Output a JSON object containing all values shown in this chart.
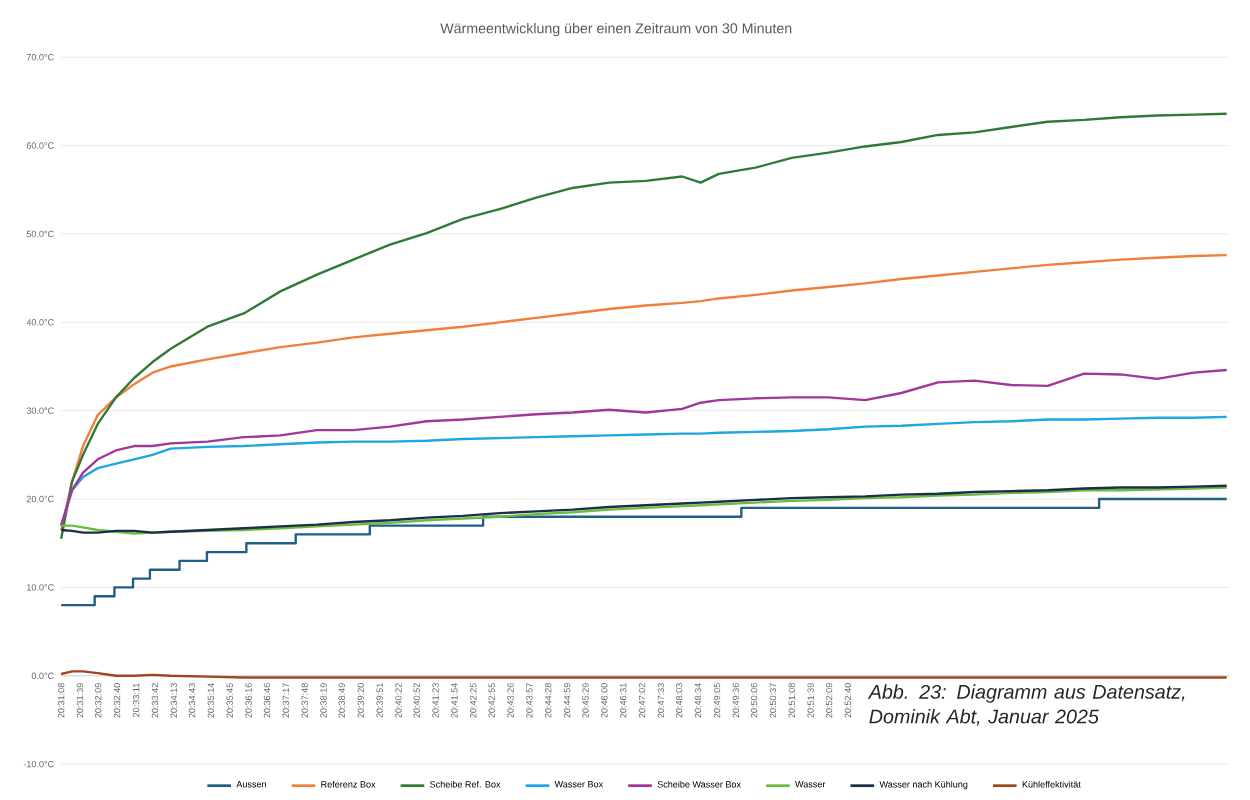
{
  "chart_data": {
    "type": "line",
    "title": "Wärmeentwicklung über einen Zeitraum von 30 Minuten",
    "x": [
      20.5189,
      20.5239,
      20.5289,
      20.5356,
      20.5439,
      20.5522,
      20.5606,
      20.5689,
      20.5856,
      20.6022,
      20.6189,
      20.6356,
      20.6522,
      20.6689,
      20.6856,
      20.7022,
      20.7189,
      20.7356,
      20.7522,
      20.7689,
      20.7856,
      20.8022,
      20.8106,
      20.8189,
      20.8356,
      20.8522,
      20.8689,
      20.8856,
      20.9022,
      20.9189,
      20.9356,
      20.9522,
      20.9689,
      20.9856,
      21.0022,
      21.0189,
      21.0356,
      21.0506
    ],
    "series": [
      {
        "name": "Aussen",
        "color": "#1f5f84",
        "type": "step",
        "x": [
          20.5189,
          20.5342,
          20.5432,
          20.5517,
          20.5594,
          20.5729,
          20.5854,
          20.6034,
          20.6259,
          20.6597,
          20.7114,
          20.8292,
          20.9924,
          21.0506
        ],
        "values": [
          8,
          9,
          10,
          11,
          12,
          13,
          14,
          15,
          16,
          17,
          18,
          19,
          20,
          20
        ]
      },
      {
        "name": "Referenz Box",
        "color": "#f07f3c",
        "values": [
          16.5,
          22,
          26,
          29.5,
          31.5,
          33,
          34.3,
          35,
          35.8,
          36.5,
          37.2,
          37.7,
          38.3,
          38.7,
          39.1,
          39.5,
          40,
          40.5,
          41,
          41.5,
          41.9,
          42.2,
          42.4,
          42.7,
          43.1,
          43.6,
          44,
          44.4,
          44.9,
          45.3,
          45.7,
          46.1,
          46.5,
          46.8,
          47.1,
          47.3,
          47.5,
          47.6
        ]
      },
      {
        "name": "Scheibe Ref. Box",
        "color": "#2f7a34",
        "values": [
          15.5,
          22,
          25,
          28.5,
          31.5,
          33.7,
          35.5,
          37,
          39.5,
          41,
          43.5,
          45.4,
          47.1,
          48.8,
          50.1,
          51.7,
          52.8,
          54.1,
          55.2,
          55.8,
          56.0,
          56.5,
          55.8,
          56.8,
          57.5,
          58.6,
          59.2,
          59.9,
          60.4,
          61.2,
          61.5,
          62.1,
          62.7,
          62.9,
          63.2,
          63.4,
          63.5,
          63.6
        ]
      },
      {
        "name": "Wasser Box",
        "color": "#1ea7e1",
        "values": [
          17,
          21,
          22.5,
          23.5,
          24,
          24.5,
          25,
          25.7,
          25.9,
          26,
          26.2,
          26.4,
          26.5,
          26.5,
          26.6,
          26.8,
          26.9,
          27,
          27.1,
          27.2,
          27.3,
          27.4,
          27.4,
          27.5,
          27.6,
          27.7,
          27.9,
          28.2,
          28.3,
          28.5,
          28.7,
          28.8,
          29,
          29,
          29.1,
          29.2,
          29.2,
          29.3
        ]
      },
      {
        "name": "Scheibe Wasser Box",
        "color": "#a0379a",
        "values": [
          17,
          21,
          23,
          24.5,
          25.5,
          26,
          26,
          26.3,
          26.5,
          27,
          27.2,
          27.8,
          27.8,
          28.2,
          28.8,
          29,
          29.3,
          29.6,
          29.8,
          30.1,
          29.8,
          30.2,
          30.9,
          31.2,
          31.4,
          31.5,
          31.5,
          31.2,
          32,
          33.2,
          33.4,
          32.9,
          32.8,
          34.2,
          34.1,
          33.6,
          34.3,
          34.6
        ]
      },
      {
        "name": "Wasser",
        "color": "#6dbb3f",
        "values": [
          17,
          17,
          16.8,
          16.5,
          16.3,
          16.1,
          16.2,
          16.3,
          16.4,
          16.5,
          16.7,
          16.9,
          17.1,
          17.3,
          17.6,
          17.8,
          18,
          18.3,
          18.5,
          18.8,
          19,
          19.2,
          19.3,
          19.4,
          19.6,
          19.8,
          19.9,
          20.1,
          20.2,
          20.4,
          20.5,
          20.7,
          20.8,
          21,
          21,
          21.1,
          21.2,
          21.3
        ]
      },
      {
        "name": "Wasser nach Kühlung",
        "color": "#1b2f4a",
        "values": [
          16.5,
          16.4,
          16.2,
          16.2,
          16.4,
          16.4,
          16.2,
          16.3,
          16.5,
          16.7,
          16.9,
          17.1,
          17.4,
          17.6,
          17.9,
          18.1,
          18.4,
          18.6,
          18.8,
          19.1,
          19.3,
          19.5,
          19.6,
          19.7,
          19.9,
          20.1,
          20.2,
          20.3,
          20.5,
          20.6,
          20.8,
          20.9,
          21,
          21.2,
          21.3,
          21.3,
          21.4,
          21.5
        ]
      },
      {
        "name": "Kühleffektivität",
        "color": "#a0461b",
        "values": [
          0.2,
          0.5,
          0.5,
          0.3,
          0,
          0,
          0.1,
          0,
          -0.1,
          -0.2,
          -0.2,
          -0.2,
          -0.2,
          -0.2,
          -0.2,
          -0.2,
          -0.2,
          -0.2,
          -0.2,
          -0.2,
          -0.2,
          -0.2,
          -0.2,
          -0.2,
          -0.2,
          -0.2,
          -0.2,
          -0.2,
          -0.2,
          -0.2,
          -0.2,
          -0.2,
          -0.2,
          -0.2,
          -0.2,
          -0.2,
          -0.2,
          -0.2
        ]
      }
    ],
    "xlim": [
      20.5189,
      21.0519
    ],
    "xticks": [
      {
        "value": 20.5189,
        "label": "20:31:08"
      },
      {
        "value": 20.5275,
        "label": "20:31:39"
      },
      {
        "value": 20.5358,
        "label": "20:32:09"
      },
      {
        "value": 20.5444,
        "label": "20:32:40"
      },
      {
        "value": 20.5531,
        "label": "20:33:11"
      },
      {
        "value": 20.5617,
        "label": "20:33:42"
      },
      {
        "value": 20.5703,
        "label": "20:34:13"
      },
      {
        "value": 20.5786,
        "label": "20:34:43"
      },
      {
        "value": 20.5872,
        "label": "20:35:14"
      },
      {
        "value": 20.5958,
        "label": "20:35:45"
      },
      {
        "value": 20.6044,
        "label": "20:36:16"
      },
      {
        "value": 20.6128,
        "label": "20:36:46"
      },
      {
        "value": 20.6214,
        "label": "20:37:17"
      },
      {
        "value": 20.63,
        "label": "20:37:48"
      },
      {
        "value": 20.6386,
        "label": "20:38:19"
      },
      {
        "value": 20.6469,
        "label": "20:38:49"
      },
      {
        "value": 20.6556,
        "label": "20:39:20"
      },
      {
        "value": 20.6642,
        "label": "20:39:51"
      },
      {
        "value": 20.6728,
        "label": "20:40:22"
      },
      {
        "value": 20.6811,
        "label": "20:40:52"
      },
      {
        "value": 20.6897,
        "label": "20:41:23"
      },
      {
        "value": 20.6983,
        "label": "20:41:54"
      },
      {
        "value": 20.7069,
        "label": "20:42:25"
      },
      {
        "value": 20.7153,
        "label": "20:42:55"
      },
      {
        "value": 20.7239,
        "label": "20:43:26"
      },
      {
        "value": 20.7325,
        "label": "20:43:57"
      },
      {
        "value": 20.7411,
        "label": "20:44:28"
      },
      {
        "value": 20.7497,
        "label": "20:44:59"
      },
      {
        "value": 20.7581,
        "label": "20:45:29"
      },
      {
        "value": 20.7667,
        "label": "20:46:00"
      },
      {
        "value": 20.7753,
        "label": "20:46:31"
      },
      {
        "value": 20.7839,
        "label": "20:47:02"
      },
      {
        "value": 20.7925,
        "label": "20:47:33"
      },
      {
        "value": 20.8008,
        "label": "20:48:03"
      },
      {
        "value": 20.8094,
        "label": "20:48:34"
      },
      {
        "value": 20.8181,
        "label": "20:49:05"
      },
      {
        "value": 20.8267,
        "label": "20:49:36"
      },
      {
        "value": 20.835,
        "label": "20:50:06"
      },
      {
        "value": 20.8436,
        "label": "20:50:37"
      },
      {
        "value": 20.8522,
        "label": "20:51:08"
      },
      {
        "value": 20.8608,
        "label": "20:51:39"
      },
      {
        "value": 20.8692,
        "label": "20:52:09"
      },
      {
        "value": 20.8778,
        "label": "20:52:40"
      }
    ],
    "ylim": [
      -10,
      70
    ],
    "yticks": [
      {
        "value": -10,
        "label": "-10.0°C"
      },
      {
        "value": 0,
        "label": "0.0°C"
      },
      {
        "value": 10,
        "label": "10.0°C"
      },
      {
        "value": 20,
        "label": "20.0°C"
      },
      {
        "value": 30,
        "label": "30.0°C"
      },
      {
        "value": 40,
        "label": "40.0°C"
      },
      {
        "value": 50,
        "label": "50.0°C"
      },
      {
        "value": 60,
        "label": "60.0°C"
      },
      {
        "value": 70,
        "label": "70.0°C"
      }
    ],
    "grid": "y",
    "legend": "bottom",
    "marker": "none",
    "line_style": "solid",
    "annotations": [
      "Abb. 23: Diagramm aus Datensatz, Dominik Abt, Januar 2025"
    ]
  }
}
